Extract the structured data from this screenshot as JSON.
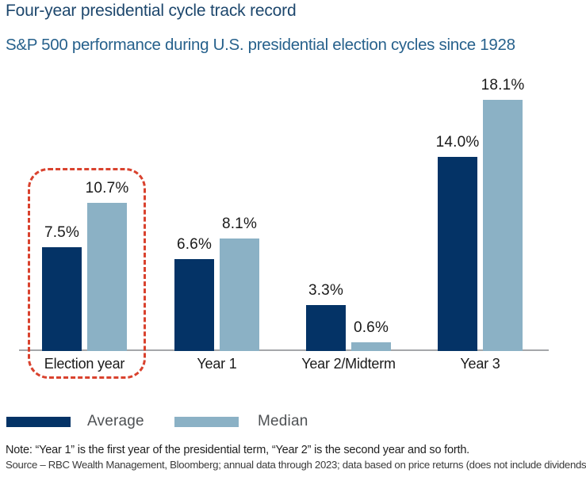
{
  "header": {
    "title": "Four-year presidential cycle track record",
    "subtitle": "S&P 500 performance during U.S. presidential election cycles since 1928"
  },
  "chart_data": {
    "type": "bar",
    "title": "Four-year presidential cycle track record",
    "subtitle": "S&P 500 performance during U.S. presidential election cycles since 1928",
    "categories": [
      "Election year",
      "Year 1",
      "Year 2/Midterm",
      "Year 3"
    ],
    "series": [
      {
        "name": "Average",
        "color": "#043366",
        "values": [
          7.5,
          6.6,
          3.3,
          14.0
        ]
      },
      {
        "name": "Median",
        "color": "#8bb1c5",
        "values": [
          10.7,
          8.1,
          0.6,
          18.1
        ]
      }
    ],
    "value_label_format": "percent_one_decimal",
    "xlabel": "",
    "ylabel": "",
    "ylim": [
      0,
      20
    ],
    "grid": false,
    "y_axis_visible": false,
    "legend_position": "bottom-left",
    "highlight": {
      "category": "Election year",
      "style": "red dashed rounded outline",
      "color": "#d9422e"
    }
  },
  "legend": {
    "items": [
      {
        "label": "Average",
        "color": "#043366"
      },
      {
        "label": "Median",
        "color": "#8bb1c5"
      }
    ]
  },
  "footnotes": {
    "note": "Note: “Year 1” is the first year of the presidential term, “Year 2” is the second year and so forth.",
    "source": "Source – RBC Wealth Management, Bloomberg; annual data through 2023; data based on price returns (does not include dividends)"
  },
  "colors": {
    "title_text": "#1d476d",
    "subtitle_text": "#27618c",
    "axis_line": "#a5a7aa",
    "data_label_text": "#1a1a1a",
    "legend_text": "#4e5154",
    "highlight_outline": "#d9422e"
  }
}
